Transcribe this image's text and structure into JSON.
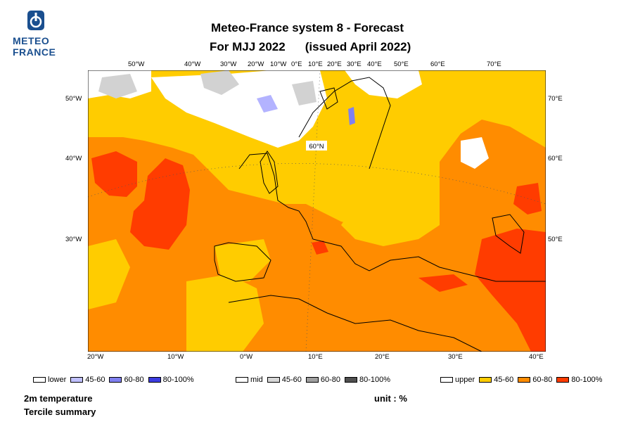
{
  "logo": {
    "line1": "METEO",
    "line2": "FRANCE"
  },
  "header": {
    "title_line1": "Meteo-France system 8  -  Forecast",
    "title_line2_left": "For MJJ 2022",
    "title_line2_right": "(issued April 2022)"
  },
  "map": {
    "top_ticks": [
      "50°W",
      "40°W",
      "30°W",
      "20°W",
      "10°W",
      "0°E",
      "10°E",
      "20°E",
      "30°E",
      "40°E",
      "50°E",
      "60°E",
      "70°E"
    ],
    "bottom_ticks": [
      "20°W",
      "10°W",
      "0°W",
      "10°E",
      "20°E",
      "30°E",
      "40°E"
    ],
    "left_ticks": [
      "50°W",
      "40°W",
      "30°W"
    ],
    "right_ticks": [
      "70°E",
      "60°E",
      "50°E"
    ],
    "parallel_label": "60°N",
    "colors": {
      "upper_45_60": "#ffcc00",
      "upper_60_80": "#ff8c00",
      "upper_80_100": "#ff3c00",
      "lower_45_60": "#b3b3ff",
      "lower_60_80": "#8080f0",
      "mid_45_60": "#d2d2d2",
      "background_white": "#ffffff"
    }
  },
  "legend": {
    "lower": {
      "label": "lower",
      "items": [
        "45-60",
        "60-80",
        "80-100%"
      ],
      "colors": [
        "#c0c0ff",
        "#8080f0",
        "#3c3ce0"
      ]
    },
    "mid": {
      "label": "mid",
      "items": [
        "45-60",
        "60-80",
        "80-100%"
      ],
      "colors": [
        "#d8d8d8",
        "#a0a0a0",
        "#505050"
      ]
    },
    "upper": {
      "label": "upper",
      "items": [
        "45-60",
        "60-80",
        "80-100%"
      ],
      "colors": [
        "#ffcc00",
        "#ff8c00",
        "#ff3c00"
      ]
    }
  },
  "footer": {
    "variable": "2m temperature",
    "product": "Tercile summary",
    "unit": "unit : %"
  }
}
